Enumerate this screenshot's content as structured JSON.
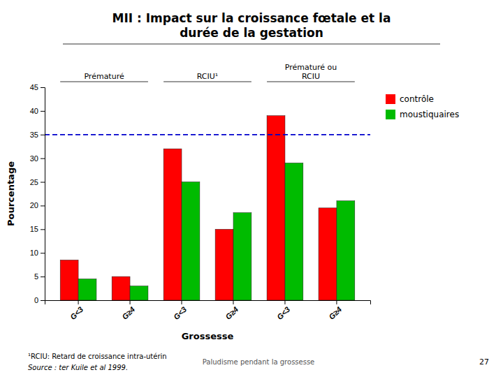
{
  "chart_data": {
    "type": "bar",
    "title": "MII : Impact sur la croissance fœtale et la\ndurée de la gestation",
    "xlabel": "Grossesse",
    "ylabel": "Pourcentage",
    "categories": [
      "G<3",
      "G≥4",
      "G<3",
      "G≥4",
      "G<3",
      "G≥4"
    ],
    "group_labels": [
      "Prématuré",
      "RCIU¹",
      "Prématuré ou\nRCIU"
    ],
    "series": [
      {
        "name": "contrôle",
        "color": "#ff0000",
        "values": [
          8.5,
          5.0,
          32.0,
          15.0,
          39.0,
          19.5
        ]
      },
      {
        "name": "moustiquaires",
        "color": "#00bb00",
        "values": [
          4.5,
          3.0,
          25.0,
          18.5,
          29.0,
          21.0
        ]
      }
    ],
    "ylim": [
      0,
      45
    ],
    "yticks": [
      0,
      5,
      10,
      15,
      20,
      25,
      30,
      35,
      40,
      45
    ],
    "reference_line": {
      "value": 35,
      "color": "#0000cc",
      "line_style": "dashed"
    },
    "annotations": [
      "¹RCIU: Retard de croissance intra-utérin",
      "Source : ter Kuile et al 1999.",
      "Paludisme pendant la grossesse",
      "27"
    ],
    "legend": "right",
    "grid": false
  }
}
